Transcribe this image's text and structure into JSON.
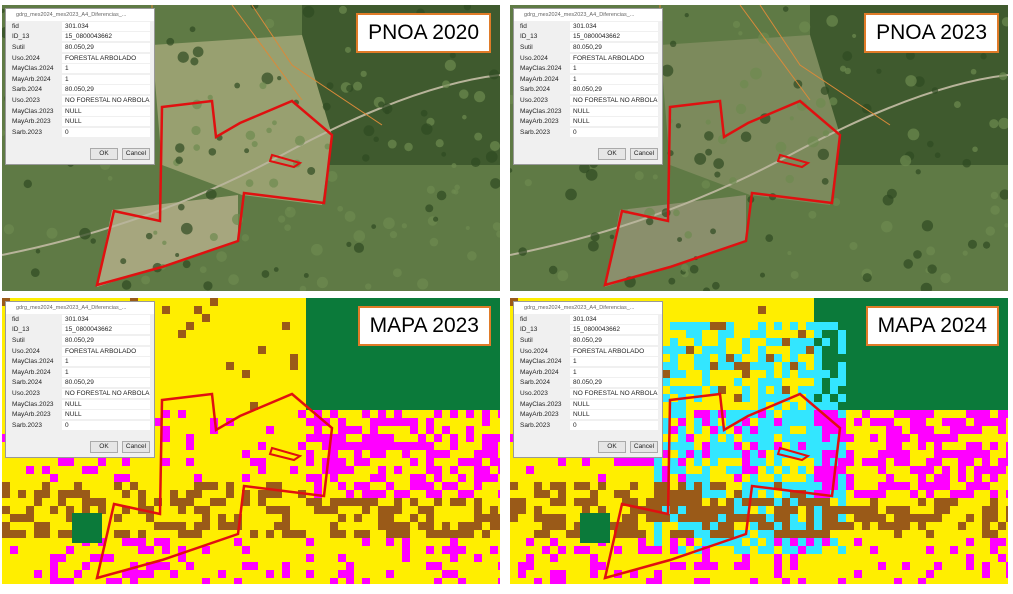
{
  "panels": [
    {
      "label": "PNOA 2020"
    },
    {
      "label": "PNOA 2023"
    },
    {
      "label": "MAPA 2023"
    },
    {
      "label": "MAPA 2024"
    }
  ],
  "dialog": {
    "title": "gdrg_mes2024_mes2023_A4_Diferencias_...",
    "rows": [
      [
        "fid",
        "301.034"
      ],
      [
        "ID_13",
        "15_0800043662"
      ],
      [
        "Sutil",
        "80.050,29"
      ],
      [
        "Uso.2024",
        "FORESTAL ARBOLADO"
      ],
      [
        "MayClas.2024",
        "1"
      ],
      [
        "MayArb.2024",
        "1"
      ],
      [
        "Sarb.2024",
        "80.050,29"
      ],
      [
        "Uso.2023",
        "NO FORESTAL NO ARBOLADO"
      ],
      [
        "MayClas.2023",
        "NULL"
      ],
      [
        "MayArb.2023",
        "NULL"
      ],
      [
        "Sarb.2023",
        "0"
      ]
    ],
    "ok": "OK",
    "cancel": "Cancel"
  }
}
